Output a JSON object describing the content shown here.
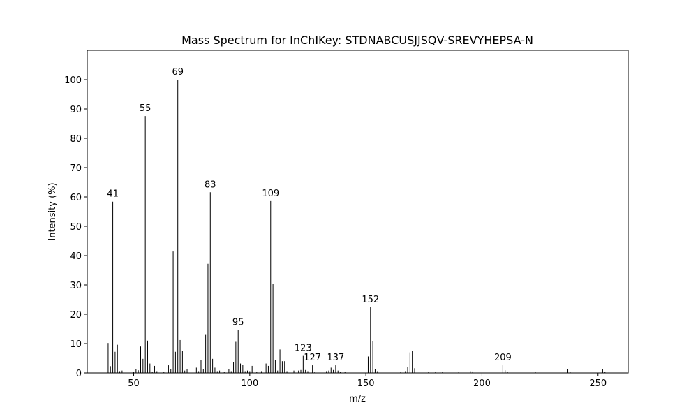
{
  "chart_data": {
    "type": "bar",
    "title": "Mass Spectrum for InChIKey: STDNABCUSJJSQV-SREVYHEPSA-N",
    "xlabel": "m/z",
    "ylabel": "Intensity (%)",
    "xlim": [
      30,
      263
    ],
    "ylim": [
      0,
      110
    ],
    "xticks": [
      50,
      100,
      150,
      200,
      250
    ],
    "yticks": [
      0,
      10,
      20,
      30,
      40,
      50,
      60,
      70,
      80,
      90,
      100
    ],
    "grid": false,
    "bar_color": "#000000",
    "peaks": [
      [
        39,
        10.2
      ],
      [
        40,
        2.3
      ],
      [
        41,
        58.4
      ],
      [
        42,
        7.2
      ],
      [
        43,
        9.6
      ],
      [
        44,
        0.6
      ],
      [
        45,
        0.8
      ],
      [
        50,
        0.4
      ],
      [
        51,
        1.2
      ],
      [
        52,
        0.9
      ],
      [
        53,
        9.0
      ],
      [
        54,
        4.8
      ],
      [
        55,
        87.6
      ],
      [
        56,
        11.0
      ],
      [
        57,
        3.2
      ],
      [
        58,
        0.4
      ],
      [
        59,
        2.4
      ],
      [
        60,
        0.6
      ],
      [
        63,
        0.4
      ],
      [
        65,
        2.6
      ],
      [
        66,
        1.2
      ],
      [
        67,
        41.4
      ],
      [
        68,
        7.2
      ],
      [
        69,
        100.0
      ],
      [
        70,
        11.2
      ],
      [
        71,
        7.6
      ],
      [
        72,
        0.8
      ],
      [
        73,
        1.4
      ],
      [
        77,
        1.8
      ],
      [
        78,
        0.6
      ],
      [
        79,
        4.4
      ],
      [
        80,
        1.4
      ],
      [
        81,
        13.2
      ],
      [
        82,
        37.2
      ],
      [
        83,
        61.6
      ],
      [
        84,
        4.8
      ],
      [
        85,
        1.8
      ],
      [
        86,
        0.6
      ],
      [
        87,
        0.8
      ],
      [
        89,
        0.4
      ],
      [
        91,
        1.2
      ],
      [
        92,
        0.6
      ],
      [
        93,
        3.6
      ],
      [
        94,
        10.6
      ],
      [
        95,
        14.6
      ],
      [
        96,
        3.2
      ],
      [
        97,
        2.8
      ],
      [
        98,
        0.6
      ],
      [
        99,
        0.8
      ],
      [
        100,
        0.6
      ],
      [
        101,
        2.4
      ],
      [
        103,
        0.4
      ],
      [
        105,
        0.6
      ],
      [
        107,
        3.2
      ],
      [
        108,
        2.4
      ],
      [
        109,
        58.6
      ],
      [
        110,
        30.4
      ],
      [
        111,
        4.4
      ],
      [
        112,
        0.8
      ],
      [
        113,
        8.0
      ],
      [
        114,
        4.0
      ],
      [
        115,
        4.0
      ],
      [
        116,
        0.6
      ],
      [
        119,
        0.8
      ],
      [
        121,
        0.8
      ],
      [
        122,
        1.0
      ],
      [
        123,
        5.8
      ],
      [
        124,
        1.0
      ],
      [
        125,
        0.6
      ],
      [
        127,
        2.6
      ],
      [
        128,
        0.4
      ],
      [
        133,
        0.6
      ],
      [
        134,
        0.8
      ],
      [
        135,
        1.8
      ],
      [
        136,
        1.0
      ],
      [
        137,
        2.6
      ],
      [
        138,
        0.8
      ],
      [
        139,
        0.4
      ],
      [
        141,
        0.4
      ],
      [
        151,
        5.6
      ],
      [
        152,
        22.4
      ],
      [
        153,
        10.8
      ],
      [
        154,
        1.2
      ],
      [
        155,
        0.6
      ],
      [
        165,
        0.4
      ],
      [
        167,
        0.6
      ],
      [
        168,
        2.0
      ],
      [
        169,
        7.0
      ],
      [
        170,
        7.6
      ],
      [
        171,
        1.6
      ],
      [
        177,
        0.4
      ],
      [
        180,
        0.3
      ],
      [
        182,
        0.3
      ],
      [
        183,
        0.3
      ],
      [
        190,
        0.3
      ],
      [
        191,
        0.3
      ],
      [
        194,
        0.4
      ],
      [
        195,
        0.6
      ],
      [
        196,
        0.5
      ],
      [
        209,
        2.6
      ],
      [
        210,
        0.9
      ],
      [
        211,
        0.3
      ],
      [
        223,
        0.4
      ],
      [
        237,
        1.2
      ],
      [
        238,
        0.3
      ],
      [
        252,
        1.4
      ],
      [
        253,
        0.3
      ]
    ],
    "annotations": [
      {
        "x": 41,
        "label": "41"
      },
      {
        "x": 55,
        "label": "55"
      },
      {
        "x": 69,
        "label": "69"
      },
      {
        "x": 83,
        "label": "83"
      },
      {
        "x": 95,
        "label": "95"
      },
      {
        "x": 109,
        "label": "109"
      },
      {
        "x": 123,
        "label": "123"
      },
      {
        "x": 127,
        "label": "127"
      },
      {
        "x": 137,
        "label": "137"
      },
      {
        "x": 152,
        "label": "152"
      },
      {
        "x": 209,
        "label": "209"
      }
    ]
  }
}
